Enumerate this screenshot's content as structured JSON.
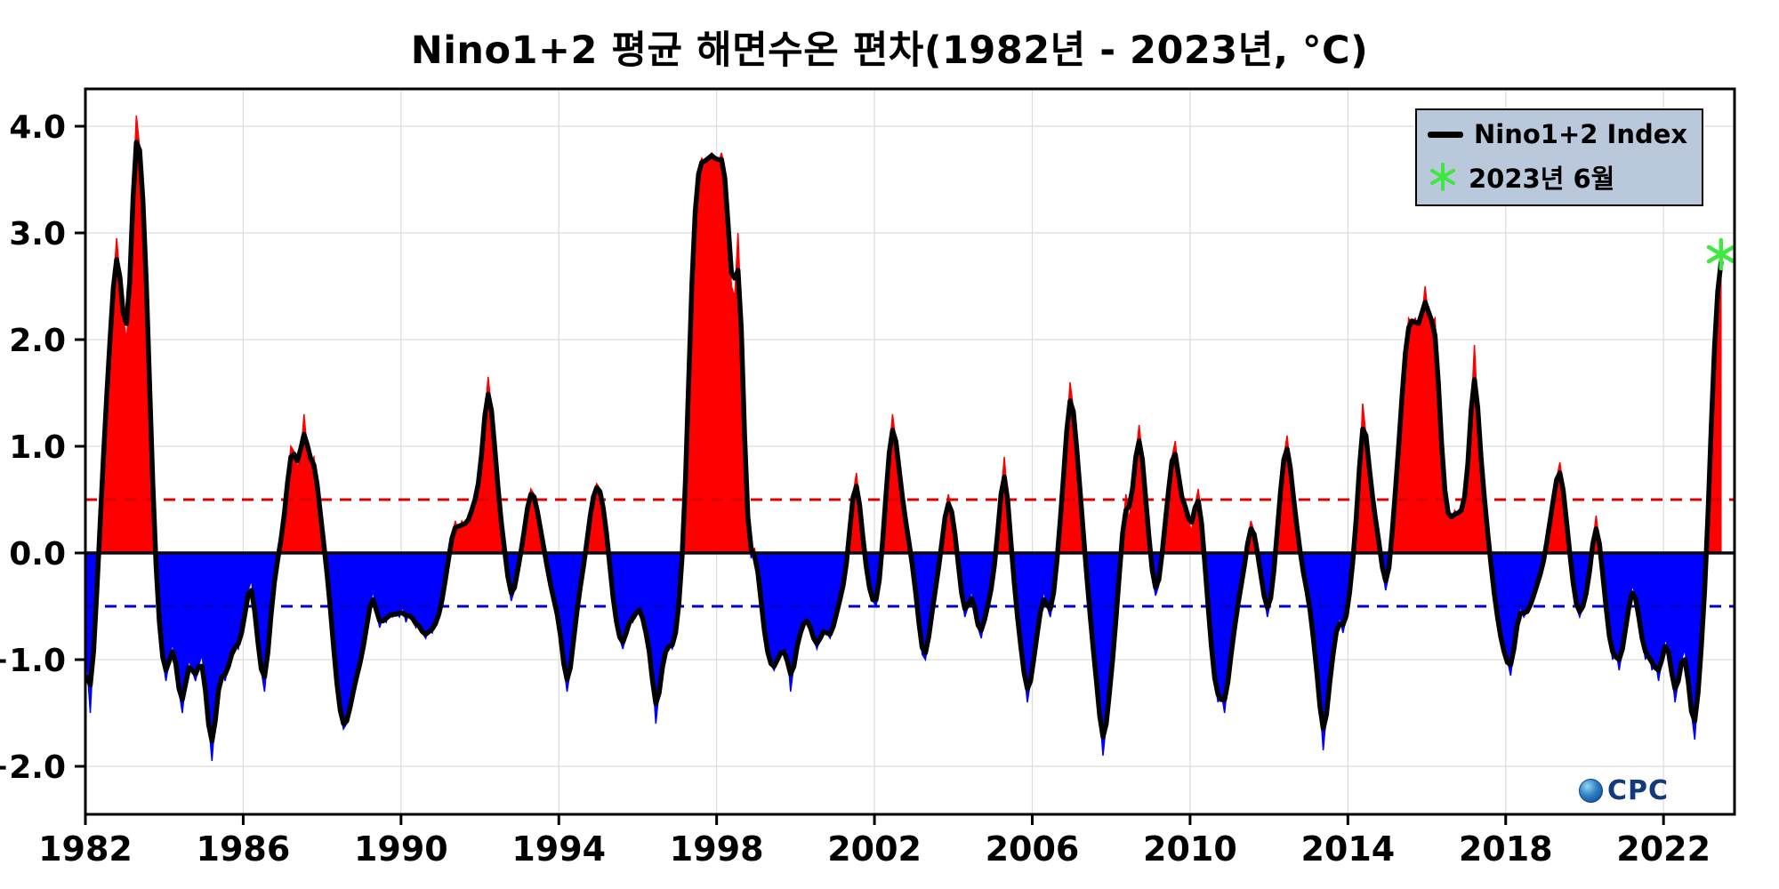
{
  "chart_data": {
    "type": "line",
    "title": "Nino1+2 평균 해면수온 편차(1982년 - 2023년, °C)",
    "xlabel": "",
    "ylabel": "",
    "start_year": 1982,
    "x_range": [
      1982.0,
      2023.8
    ],
    "y_range": [
      -2.45,
      4.35
    ],
    "x_ticks": [
      {
        "value": 1982,
        "label": "1982"
      },
      {
        "value": 1986,
        "label": "1986"
      },
      {
        "value": 1990,
        "label": "1990"
      },
      {
        "value": 1994,
        "label": "1994"
      },
      {
        "value": 1998,
        "label": "1998"
      },
      {
        "value": 2002,
        "label": "2002"
      },
      {
        "value": 2006,
        "label": "2006"
      },
      {
        "value": 2010,
        "label": "2010"
      },
      {
        "value": 2014,
        "label": "2014"
      },
      {
        "value": 2018,
        "label": "2018"
      },
      {
        "value": 2022,
        "label": "2022"
      }
    ],
    "y_ticks": [
      {
        "value": 4,
        "label": "4.0"
      },
      {
        "value": 3,
        "label": "3.0"
      },
      {
        "value": 2,
        "label": "2.0"
      },
      {
        "value": 1,
        "label": "1.0"
      },
      {
        "value": 0,
        "label": "0.0"
      },
      {
        "value": -1,
        "label": "−1.0"
      },
      {
        "value": -2,
        "label": "−2.0"
      }
    ],
    "thresholds": {
      "upper": 0.5,
      "lower": -0.5
    },
    "monthly_values": [
      -1.05,
      -1.5,
      -0.9,
      -0.4,
      0.3,
      0.9,
      1.5,
      2.0,
      2.5,
      2.95,
      2.6,
      2.2,
      2.0,
      2.4,
      3.4,
      4.1,
      3.8,
      3.4,
      2.6,
      1.6,
      0.6,
      -0.2,
      -0.7,
      -1.0,
      -1.2,
      -1.0,
      -0.85,
      -1.0,
      -1.3,
      -1.5,
      -1.2,
      -1.0,
      -1.1,
      -1.2,
      -1.05,
      -0.95,
      -1.3,
      -1.6,
      -1.95,
      -1.55,
      -1.25,
      -1.1,
      -1.2,
      -1.05,
      -0.95,
      -0.85,
      -0.9,
      -0.75,
      -0.6,
      -0.35,
      -0.25,
      -0.55,
      -0.85,
      -1.1,
      -1.3,
      -0.95,
      -0.55,
      -0.25,
      -0.05,
      0.1,
      0.35,
      0.65,
      1.0,
      0.95,
      0.8,
      0.9,
      1.3,
      0.95,
      0.85,
      0.9,
      0.65,
      0.35,
      0.1,
      -0.2,
      -0.5,
      -0.9,
      -1.25,
      -1.5,
      -1.65,
      -1.6,
      -1.45,
      -1.3,
      -1.15,
      -1.05,
      -0.9,
      -0.7,
      -0.5,
      -0.35,
      -0.55,
      -0.7,
      -0.6,
      -0.65,
      -0.55,
      -0.6,
      -0.55,
      -0.6,
      -0.5,
      -0.65,
      -0.55,
      -0.6,
      -0.7,
      -0.65,
      -0.75,
      -0.8,
      -0.7,
      -0.75,
      -0.65,
      -0.6,
      -0.45,
      -0.25,
      -0.05,
      0.15,
      0.3,
      0.2,
      0.3,
      0.25,
      0.3,
      0.4,
      0.5,
      0.6,
      0.9,
      1.3,
      1.65,
      1.35,
      1.0,
      0.6,
      0.25,
      0.05,
      -0.25,
      -0.45,
      -0.35,
      -0.15,
      0.0,
      0.2,
      0.45,
      0.6,
      0.55,
      0.4,
      0.2,
      0.05,
      -0.15,
      -0.3,
      -0.45,
      -0.55,
      -0.75,
      -1.05,
      -1.3,
      -1.1,
      -0.8,
      -0.55,
      -0.3,
      -0.15,
      0.1,
      0.35,
      0.55,
      0.65,
      0.6,
      0.45,
      0.2,
      -0.1,
      -0.45,
      -0.65,
      -0.8,
      -0.9,
      -0.75,
      -0.6,
      -0.65,
      -0.55,
      -0.5,
      -0.6,
      -0.75,
      -0.9,
      -1.15,
      -1.6,
      -1.3,
      -1.05,
      -0.9,
      -0.85,
      -0.9,
      -0.8,
      -0.5,
      -0.1,
      0.6,
      1.6,
      2.6,
      3.3,
      3.6,
      3.7,
      3.65,
      3.7,
      3.75,
      3.7,
      3.65,
      3.75,
      3.6,
      3.1,
      2.5,
      2.4,
      3.0,
      2.2,
      1.0,
      0.2,
      -0.05,
      0.05,
      -0.15,
      -0.45,
      -0.75,
      -0.95,
      -1.05,
      -1.1,
      -1.0,
      -0.9,
      -0.95,
      -0.9,
      -1.3,
      -1.05,
      -0.85,
      -0.75,
      -0.65,
      -0.6,
      -0.7,
      -0.8,
      -0.9,
      -0.8,
      -0.7,
      -0.75,
      -0.8,
      -0.7,
      -0.55,
      -0.45,
      -0.3,
      -0.15,
      0.25,
      0.55,
      0.75,
      0.45,
      0.15,
      -0.15,
      -0.35,
      -0.45,
      -0.5,
      -0.3,
      0.1,
      0.55,
      0.95,
      1.3,
      1.05,
      0.8,
      0.5,
      0.3,
      0.1,
      -0.1,
      -0.35,
      -0.65,
      -0.95,
      -1.0,
      -0.8,
      -0.55,
      -0.35,
      -0.15,
      0.1,
      0.35,
      0.55,
      0.4,
      0.2,
      -0.1,
      -0.4,
      -0.6,
      -0.5,
      -0.35,
      -0.5,
      -0.7,
      -0.8,
      -0.6,
      -0.5,
      -0.35,
      -0.15,
      0.2,
      0.55,
      0.9,
      0.5,
      0.1,
      -0.3,
      -0.6,
      -0.9,
      -1.1,
      -1.4,
      -1.2,
      -1.0,
      -0.75,
      -0.55,
      -0.35,
      -0.5,
      -0.6,
      -0.4,
      -0.1,
      0.3,
      0.7,
      1.15,
      1.6,
      1.35,
      1.0,
      0.6,
      0.2,
      -0.2,
      -0.55,
      -0.9,
      -1.2,
      -1.5,
      -1.9,
      -1.6,
      -1.3,
      -1.0,
      -0.6,
      -0.2,
      0.2,
      0.55,
      0.3,
      0.6,
      0.9,
      1.2,
      0.9,
      0.5,
      0.15,
      -0.2,
      -0.4,
      -0.3,
      0.0,
      0.3,
      0.6,
      0.9,
      1.05,
      0.7,
      0.45,
      0.5,
      0.3,
      0.2,
      0.45,
      0.6,
      0.3,
      -0.1,
      -0.5,
      -0.9,
      -1.2,
      -1.4,
      -1.3,
      -1.5,
      -1.2,
      -0.95,
      -0.7,
      -0.5,
      -0.3,
      -0.15,
      0.1,
      0.3,
      0.2,
      0.0,
      -0.2,
      -0.4,
      -0.6,
      -0.45,
      -0.2,
      0.2,
      0.6,
      0.9,
      1.1,
      0.8,
      0.5,
      0.25,
      0.0,
      -0.2,
      -0.35,
      -0.5,
      -0.8,
      -1.1,
      -1.4,
      -1.85,
      -1.5,
      -1.2,
      -0.95,
      -0.7,
      -0.6,
      -0.75,
      -0.6,
      -0.4,
      -0.1,
      0.3,
      0.75,
      1.4,
      1.1,
      0.8,
      0.5,
      0.3,
      0.1,
      -0.15,
      -0.35,
      -0.2,
      0.2,
      0.6,
      1.0,
      1.5,
      1.9,
      2.2,
      2.15,
      2.2,
      2.1,
      2.2,
      2.5,
      2.2,
      2.15,
      2.2,
      1.6,
      1.0,
      0.5,
      0.35,
      0.3,
      0.4,
      0.35,
      0.4,
      0.45,
      0.8,
      1.3,
      1.95,
      1.3,
      0.9,
      0.5,
      0.2,
      -0.1,
      -0.4,
      -0.6,
      -0.8,
      -0.95,
      -1.0,
      -1.15,
      -0.9,
      -0.65,
      -0.5,
      -0.6,
      -0.55,
      -0.5,
      -0.4,
      -0.3,
      -0.2,
      -0.1,
      0.1,
      0.3,
      0.5,
      0.7,
      0.85,
      0.6,
      0.3,
      0.0,
      -0.3,
      -0.5,
      -0.6,
      -0.5,
      -0.4,
      -0.2,
      0.1,
      0.35,
      0.1,
      -0.2,
      -0.5,
      -0.8,
      -1.0,
      -0.9,
      -1.1,
      -0.9,
      -0.7,
      -0.5,
      -0.3,
      -0.4,
      -0.6,
      -0.8,
      -1.0,
      -0.9,
      -1.1,
      -1.0,
      -1.2,
      -1.0,
      -0.8,
      -0.9,
      -1.1,
      -1.4,
      -1.2,
      -1.0,
      -0.9,
      -1.2,
      -1.5,
      -1.75,
      -1.3,
      -0.9,
      -0.4,
      0.3,
      1.2,
      2.0,
      2.5,
      2.8
    ],
    "marker": {
      "label": "2023년 6월",
      "x": 2023.458,
      "value": 2.8
    },
    "legend": [
      {
        "swatch": "line",
        "label": "Nino1+2 Index"
      },
      {
        "swatch": "asterisk",
        "label": "2023년 6월"
      }
    ],
    "colors": {
      "positive_fill": "#ff0000",
      "negative_fill": "#0000ff",
      "line": "#000000",
      "marker": "#3fe83f",
      "upper_threshold": "#dd0000",
      "lower_threshold": "#0000cc",
      "zero_line": "#0a0a14",
      "grid": "#dcdcdc",
      "legend_background": "#b9c8da"
    },
    "watermark": "CPC",
    "legend_position": "top-right",
    "grid": true
  }
}
